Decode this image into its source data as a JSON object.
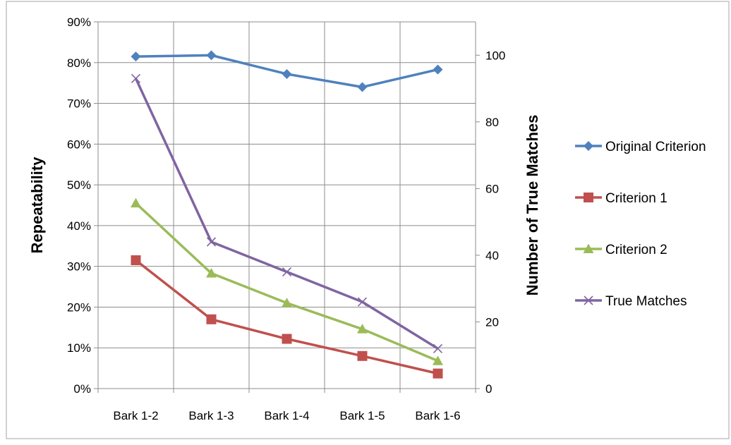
{
  "chart_data": {
    "type": "line",
    "categories": [
      "Bark 1-2",
      "Bark 1-3",
      "Bark 1-4",
      "Bark 1-5",
      "Bark 1-6"
    ],
    "y_left": {
      "label": "Repeatability",
      "ylim": [
        0,
        90
      ],
      "ticks": [
        0,
        10,
        20,
        30,
        40,
        50,
        60,
        70,
        80,
        90
      ],
      "tick_labels": [
        "0%",
        "10%",
        "20%",
        "30%",
        "40%",
        "50%",
        "60%",
        "70%",
        "80%",
        "90%"
      ]
    },
    "y_right": {
      "label": "Number of True Matches",
      "ylim": [
        0,
        110
      ],
      "ticks": [
        0,
        20,
        40,
        60,
        80,
        100
      ],
      "tick_labels": [
        "0",
        "20",
        "40",
        "60",
        "80",
        "100"
      ]
    },
    "grid": true,
    "legend": "right",
    "series": [
      {
        "name": "Original Criterion",
        "axis": "left",
        "marker": "diamond",
        "color": "#4f81bd",
        "values": [
          81.5,
          81.8,
          77.2,
          74.0,
          78.3
        ]
      },
      {
        "name": "Criterion 1",
        "axis": "left",
        "marker": "square",
        "color": "#c0504d",
        "values": [
          31.5,
          17.0,
          12.2,
          8.0,
          3.7
        ]
      },
      {
        "name": "Criterion 2",
        "axis": "left",
        "marker": "triangle",
        "color": "#9bbb59",
        "values": [
          45.5,
          28.3,
          21.0,
          14.6,
          6.8
        ]
      },
      {
        "name": "True Matches",
        "axis": "right",
        "marker": "x",
        "color": "#8064a2",
        "values": [
          93,
          44,
          35,
          26,
          12
        ]
      }
    ]
  }
}
